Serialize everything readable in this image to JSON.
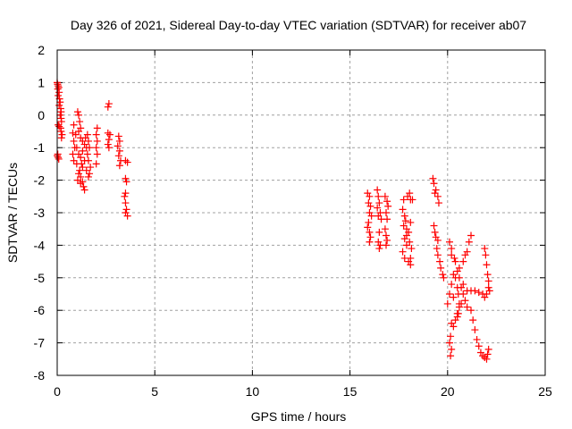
{
  "chart_data": {
    "type": "scatter",
    "title": "Day 326 of 2021, Sidereal Day-to-day VTEC variation (SDTVAR) for receiver ab07",
    "xlabel": "GPS time / hours",
    "ylabel": "SDTVAR / TECUs",
    "xlim": [
      0,
      25
    ],
    "ylim": [
      -8,
      2
    ],
    "xticks": [
      "0",
      "5",
      "10",
      "15",
      "20",
      "25"
    ],
    "yticks": [
      "2",
      "1",
      "0",
      "-1",
      "-2",
      "-3",
      "-4",
      "-5",
      "-6",
      "-7",
      "-8"
    ],
    "xtick_values": [
      0,
      5,
      10,
      15,
      20,
      25
    ],
    "ytick_values": [
      2,
      1,
      0,
      -1,
      -2,
      -3,
      -4,
      -5,
      -6,
      -7,
      -8
    ],
    "grid": true,
    "marker": "plus",
    "color": "#ff0000",
    "points": [
      [
        0,
        1
      ],
      [
        0.02,
        0.95
      ],
      [
        0.05,
        0.9
      ],
      [
        0.03,
        0.8
      ],
      [
        0.08,
        0.85
      ],
      [
        0.1,
        0.7
      ],
      [
        0.05,
        0.6
      ],
      [
        0.12,
        0.5
      ],
      [
        0.15,
        0.4
      ],
      [
        0.1,
        0.3
      ],
      [
        0.18,
        0.2
      ],
      [
        0.2,
        0.1
      ],
      [
        0.15,
        0
      ],
      [
        0.2,
        -0.1
      ],
      [
        0.22,
        -0.2
      ],
      [
        0.05,
        -0.3
      ],
      [
        0.1,
        -0.35
      ],
      [
        0.18,
        -0.4
      ],
      [
        0.2,
        -0.5
      ],
      [
        0.25,
        -0.6
      ],
      [
        0.22,
        -0.7
      ],
      [
        0.0,
        -1.25
      ],
      [
        0.05,
        -1.3
      ],
      [
        0.08,
        -1.35
      ],
      [
        0.03,
        -1.2
      ],
      [
        0.85,
        -0.3
      ],
      [
        0.8,
        -0.55
      ],
      [
        0.85,
        -0.8
      ],
      [
        0.9,
        -1.0
      ],
      [
        0.8,
        -1.2
      ],
      [
        0.85,
        -1.4
      ],
      [
        0.95,
        -0.6
      ],
      [
        1.05,
        0.1
      ],
      [
        1.1,
        0
      ],
      [
        1.15,
        -0.2
      ],
      [
        1.2,
        -0.4
      ],
      [
        1.1,
        -0.5
      ],
      [
        1.2,
        -0.7
      ],
      [
        1.3,
        -0.8
      ],
      [
        1.4,
        -0.9
      ],
      [
        1.5,
        -1.0
      ],
      [
        1.3,
        -1.1
      ],
      [
        1.1,
        -1.2
      ],
      [
        1.2,
        -1.3
      ],
      [
        1.4,
        -1.4
      ],
      [
        1.0,
        -1.5
      ],
      [
        1.3,
        -1.6
      ],
      [
        1.5,
        -1.7
      ],
      [
        1.1,
        -1.8
      ],
      [
        1.2,
        -1.9
      ],
      [
        1.05,
        -2.0
      ],
      [
        1.3,
        -2.05
      ],
      [
        1.2,
        -2.1
      ],
      [
        1.35,
        -2.2
      ],
      [
        1.4,
        -2.3
      ],
      [
        1.0,
        -1.0
      ],
      [
        1.45,
        -0.7
      ],
      [
        1.25,
        -1.5
      ],
      [
        1.15,
        -1.7
      ],
      [
        1.55,
        -0.6
      ],
      [
        1.6,
        -0.8
      ],
      [
        1.65,
        -1.0
      ],
      [
        1.55,
        -1.2
      ],
      [
        1.6,
        -1.4
      ],
      [
        1.7,
        -1.6
      ],
      [
        1.65,
        -1.8
      ],
      [
        1.6,
        -1.9
      ],
      [
        2.05,
        -0.4
      ],
      [
        2.0,
        -0.6
      ],
      [
        2.05,
        -0.8
      ],
      [
        2.0,
        -1.0
      ],
      [
        2.05,
        -1.2
      ],
      [
        2.0,
        -1.5
      ],
      [
        2.65,
        0.35
      ],
      [
        2.6,
        0.25
      ],
      [
        2.6,
        -0.55
      ],
      [
        2.7,
        -0.6
      ],
      [
        2.65,
        -0.75
      ],
      [
        2.6,
        -0.9
      ],
      [
        2.65,
        -1.0
      ],
      [
        3.15,
        -0.65
      ],
      [
        3.2,
        -0.8
      ],
      [
        3.1,
        -0.95
      ],
      [
        3.2,
        -1.1
      ],
      [
        3.15,
        -1.25
      ],
      [
        3.25,
        -1.4
      ],
      [
        3.2,
        -1.55
      ],
      [
        3.5,
        -1.4
      ],
      [
        3.6,
        -1.45
      ],
      [
        3.5,
        -1.95
      ],
      [
        3.55,
        -2.05
      ],
      [
        3.5,
        -2.4
      ],
      [
        3.45,
        -2.5
      ],
      [
        3.5,
        -2.7
      ],
      [
        3.55,
        -2.9
      ],
      [
        3.5,
        -3.0
      ],
      [
        3.6,
        -3.1
      ],
      [
        15.9,
        -2.4
      ],
      [
        16.0,
        -2.5
      ],
      [
        15.95,
        -2.7
      ],
      [
        16.05,
        -2.8
      ],
      [
        16.0,
        -3.0
      ],
      [
        16.1,
        -3.1
      ],
      [
        15.95,
        -3.3
      ],
      [
        15.9,
        -3.45
      ],
      [
        16.0,
        -3.6
      ],
      [
        16.05,
        -3.75
      ],
      [
        16.0,
        -3.9
      ],
      [
        16.4,
        -2.3
      ],
      [
        16.45,
        -2.5
      ],
      [
        16.5,
        -2.7
      ],
      [
        16.4,
        -2.85
      ],
      [
        16.55,
        -3.0
      ],
      [
        16.6,
        -3.2
      ],
      [
        16.45,
        -3.1
      ],
      [
        16.5,
        -3.6
      ],
      [
        16.45,
        -3.9
      ],
      [
        16.55,
        -4.0
      ],
      [
        16.5,
        -4.1
      ],
      [
        16.8,
        -2.5
      ],
      [
        16.9,
        -2.65
      ],
      [
        16.95,
        -2.8
      ],
      [
        16.85,
        -3.0
      ],
      [
        16.9,
        -3.2
      ],
      [
        16.8,
        -3.5
      ],
      [
        16.85,
        -3.7
      ],
      [
        16.9,
        -3.85
      ],
      [
        16.85,
        -4.0
      ],
      [
        17.75,
        -2.6
      ],
      [
        17.7,
        -2.9
      ],
      [
        17.8,
        -3.1
      ],
      [
        17.75,
        -3.4
      ],
      [
        17.9,
        -3.5
      ],
      [
        18.0,
        -3.6
      ],
      [
        17.8,
        -3.8
      ],
      [
        17.9,
        -4.0
      ],
      [
        17.7,
        -4.2
      ],
      [
        17.8,
        -4.4
      ],
      [
        18.0,
        -4.5
      ],
      [
        18.1,
        -4.6
      ],
      [
        18.05,
        -2.4
      ],
      [
        18.1,
        -2.6
      ],
      [
        18.2,
        -2.6
      ],
      [
        17.95,
        -2.5
      ],
      [
        18.1,
        -3.3
      ],
      [
        18.05,
        -3.9
      ],
      [
        18.15,
        -4.1
      ],
      [
        17.9,
        -3.7
      ],
      [
        18.1,
        -4.4
      ],
      [
        17.85,
        -3.25
      ],
      [
        19.25,
        -1.95
      ],
      [
        19.3,
        -2.1
      ],
      [
        19.4,
        -2.3
      ],
      [
        19.35,
        -2.4
      ],
      [
        19.5,
        -2.5
      ],
      [
        19.55,
        -2.7
      ],
      [
        19.3,
        -3.4
      ],
      [
        19.35,
        -3.6
      ],
      [
        19.4,
        -3.75
      ],
      [
        19.5,
        -3.85
      ],
      [
        19.45,
        -4.1
      ],
      [
        19.5,
        -4.3
      ],
      [
        19.6,
        -4.5
      ],
      [
        19.65,
        -4.7
      ],
      [
        19.75,
        -4.9
      ],
      [
        19.8,
        -5.0
      ],
      [
        20.2,
        -4.3
      ],
      [
        20.4,
        -4.5
      ],
      [
        20.6,
        -4.7
      ],
      [
        20.8,
        -4.5
      ],
      [
        20.9,
        -4.3
      ],
      [
        21.0,
        -4.2
      ],
      [
        21.1,
        -3.9
      ],
      [
        21.2,
        -3.7
      ],
      [
        20.1,
        -3.9
      ],
      [
        20.2,
        -4.1
      ],
      [
        20.35,
        -4.4
      ],
      [
        20.5,
        -4.8
      ],
      [
        20.6,
        -5.0
      ],
      [
        20.7,
        -5.3
      ],
      [
        20.8,
        -5.5
      ],
      [
        20.9,
        -5.7
      ],
      [
        21.0,
        -5.9
      ],
      [
        21.2,
        -6.0
      ],
      [
        21.3,
        -6.3
      ],
      [
        21.4,
        -6.6
      ],
      [
        21.5,
        -6.9
      ],
      [
        21.6,
        -7.1
      ],
      [
        21.7,
        -7.3
      ],
      [
        21.8,
        -7.4
      ],
      [
        21.9,
        -7.45
      ],
      [
        22.0,
        -7.5
      ],
      [
        22.05,
        -7.35
      ],
      [
        22.1,
        -7.2
      ],
      [
        20.0,
        -5.8
      ],
      [
        20.1,
        -5.5
      ],
      [
        20.2,
        -5.2
      ],
      [
        20.3,
        -4.9
      ],
      [
        20.4,
        -5.0
      ],
      [
        20.5,
        -5.3
      ],
      [
        20.3,
        -5.6
      ],
      [
        20.2,
        -6.4
      ],
      [
        20.3,
        -6.5
      ],
      [
        20.4,
        -6.3
      ],
      [
        20.5,
        -6.1
      ],
      [
        20.6,
        -5.9
      ],
      [
        20.7,
        -5.8
      ],
      [
        20.15,
        -6.8
      ],
      [
        20.1,
        -7.0
      ],
      [
        20.2,
        -7.2
      ],
      [
        20.15,
        -7.4
      ],
      [
        20.8,
        -5.2
      ],
      [
        21.0,
        -5.4
      ],
      [
        21.2,
        -5.4
      ],
      [
        21.4,
        -5.4
      ],
      [
        21.6,
        -5.45
      ],
      [
        21.8,
        -5.5
      ],
      [
        21.9,
        -5.6
      ],
      [
        22.0,
        -5.5
      ],
      [
        22.1,
        -5.3
      ],
      [
        21.9,
        -4.1
      ],
      [
        21.95,
        -4.3
      ],
      [
        22.0,
        -4.6
      ],
      [
        22.05,
        -4.9
      ],
      [
        22.1,
        -5.1
      ],
      [
        22.15,
        -5.4
      ],
      [
        20.55,
        -5.5
      ],
      [
        20.6,
        -5.8
      ],
      [
        20.55,
        -6.1
      ],
      [
        20.5,
        -6.2
      ]
    ]
  }
}
